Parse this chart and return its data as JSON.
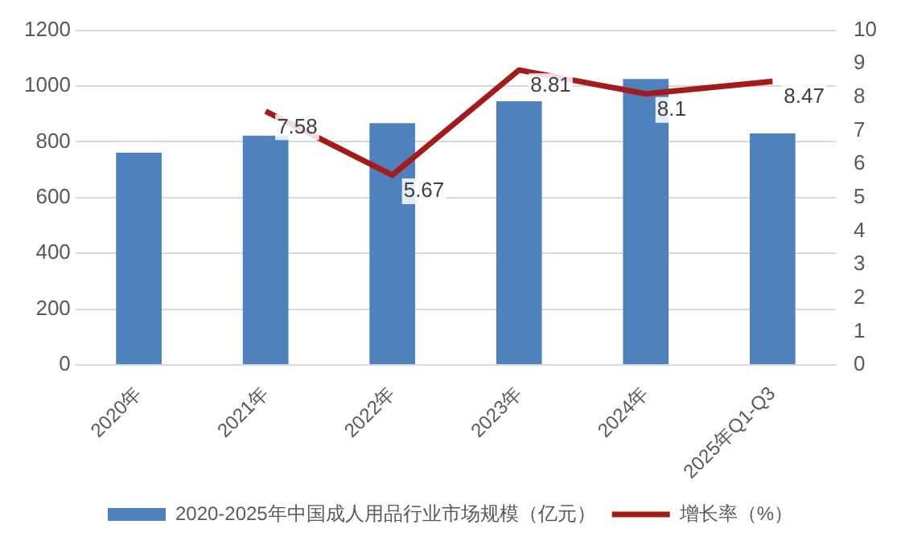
{
  "chart_data": {
    "type": "bar",
    "categories": [
      "2020年",
      "2021年",
      "2022年",
      "2023年",
      "2024年",
      "2025年Q1-Q3"
    ],
    "series": [
      {
        "name": "2020-2025年中国成人用品行业市场规模（亿元）",
        "color": "#4f81bd",
        "values": [
          761,
          822,
          867,
          945,
          1025,
          830
        ]
      },
      {
        "name": "增长率（%）",
        "type": "line",
        "axis": "y2",
        "color": "#a31b1b",
        "values": [
          null,
          7.58,
          5.67,
          8.81,
          8.1,
          8.47
        ],
        "value_labels": [
          null,
          "7.58",
          "5.67",
          "8.81",
          "8.1",
          "8.47"
        ]
      }
    ],
    "ylim": [
      0,
      1200
    ],
    "yticks": [
      0,
      200,
      400,
      600,
      800,
      1000,
      1200
    ],
    "y2lim": [
      0,
      10
    ],
    "y2ticks": [
      0,
      1,
      2,
      3,
      4,
      5,
      6,
      7,
      8,
      9,
      10
    ],
    "grid": "y",
    "legend": "bottom",
    "marker": "none"
  }
}
